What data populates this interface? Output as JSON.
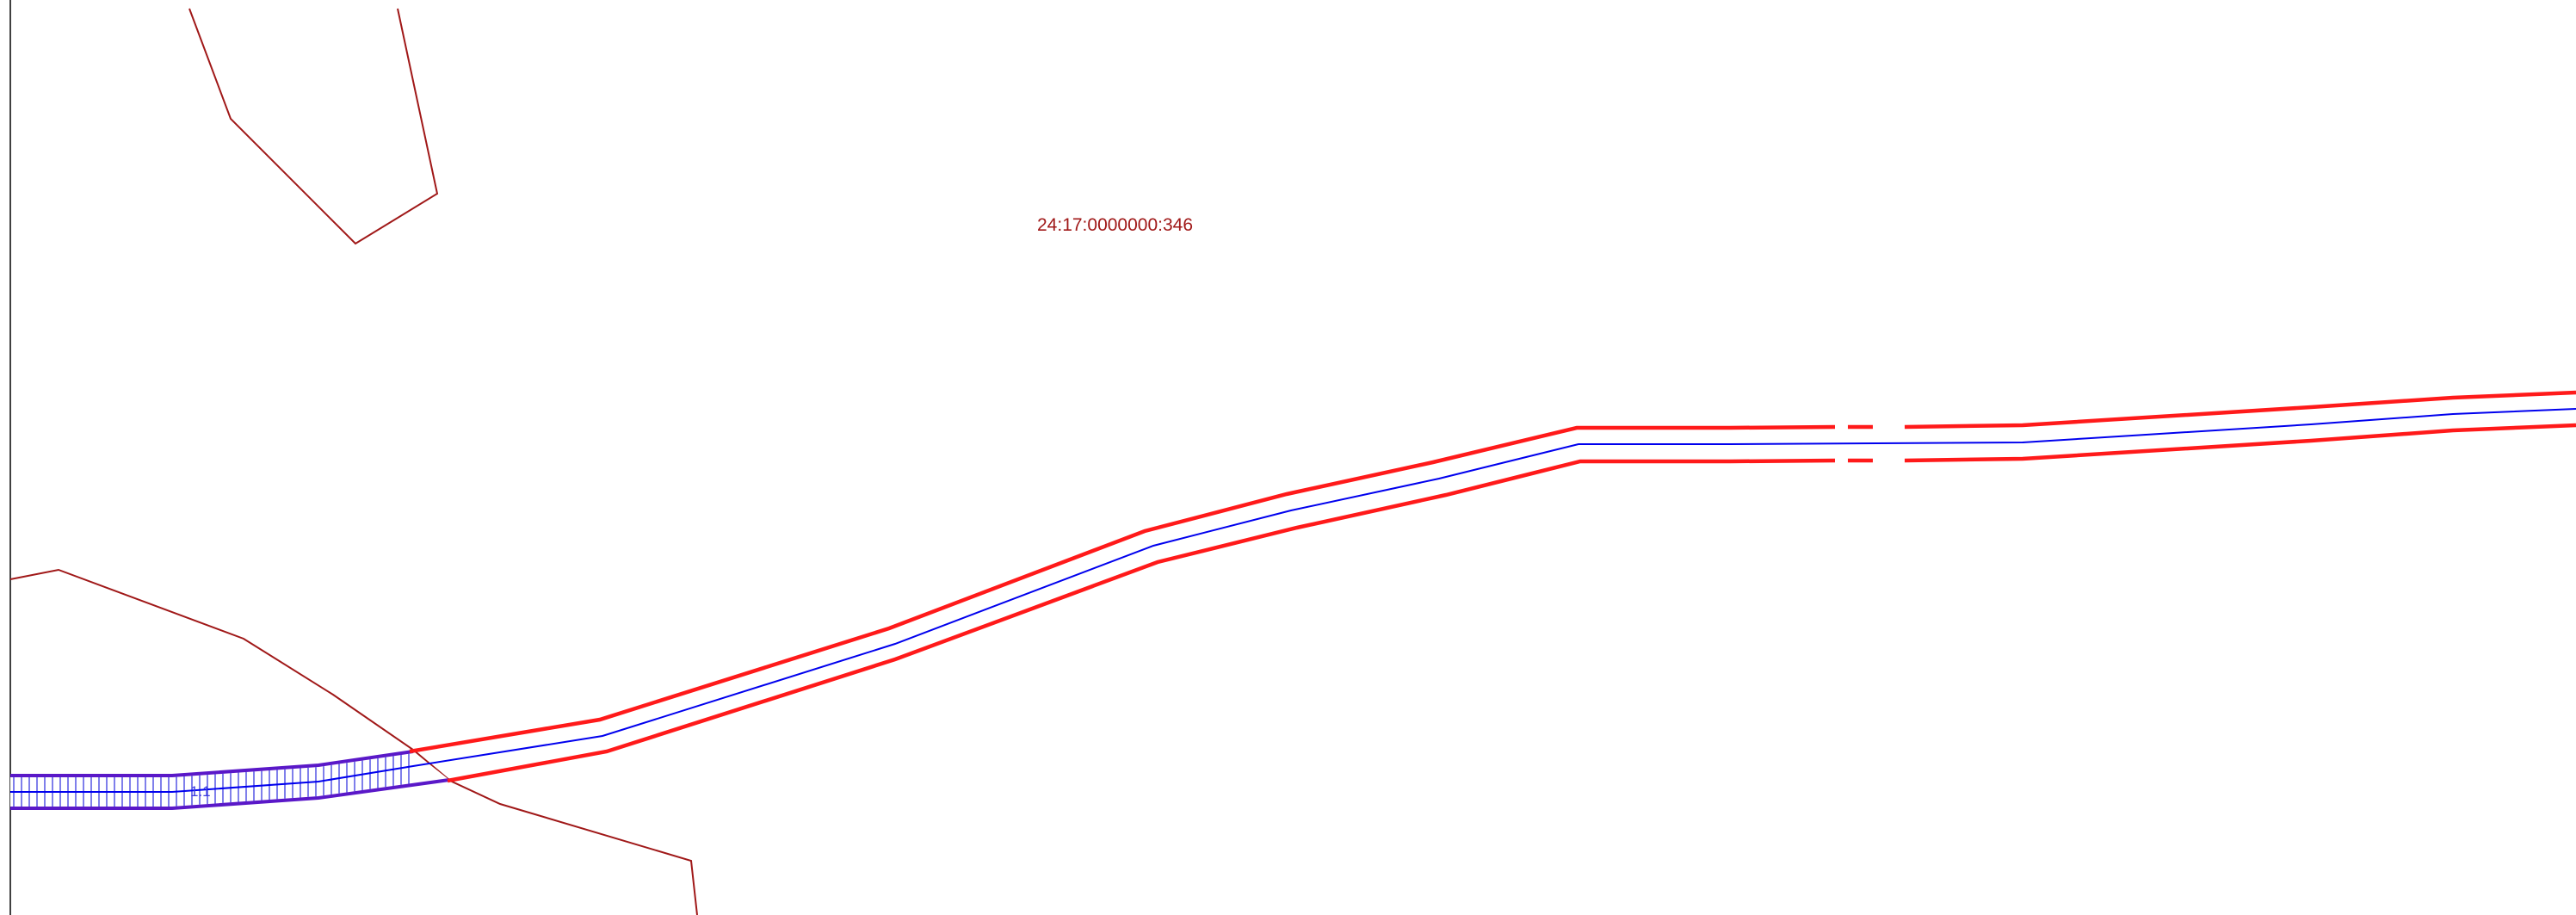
{
  "map": {
    "parcel_number": "24:17:0000000:346",
    "segment_label": "1.1",
    "colors": {
      "background": "#ffffff",
      "frame": "#404040",
      "parcel_boundary": "#a01818",
      "parcel_label": "#a01818",
      "zone_boundary": "#ff1a1a",
      "centerline": "#0000ee",
      "hatched_zone": "#5a18c8",
      "hatch_lines": "#3a3ae0"
    }
  }
}
